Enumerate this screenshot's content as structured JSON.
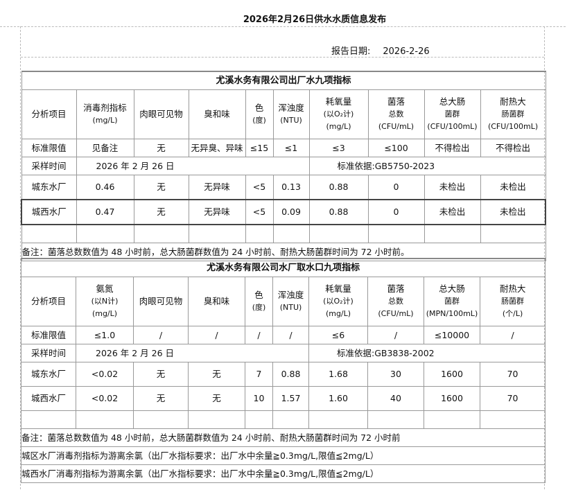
{
  "page_title": "2026年2月26日供水水质信息发布",
  "report_date_label": "报告日期:",
  "report_date": "2026-2-26",
  "table1": {
    "title": "尤溪水务有限公司出厂水九项指标",
    "headers": [
      [
        "分析项目"
      ],
      [
        "消毒剂指标",
        "(mg/L)"
      ],
      [
        "肉眼可见物"
      ],
      [
        "臭和味"
      ],
      [
        "色",
        "(度)"
      ],
      [
        "浑浊度",
        "(NTU)"
      ],
      [
        "耗氧量",
        "(以O₂计)",
        "(mg/L)"
      ],
      [
        "菌落",
        "总数",
        "(CFU/mL)"
      ],
      [
        "总大肠",
        "菌群",
        "(CFU/100mL)"
      ],
      [
        "耐热大",
        "肠菌群",
        "(CFU/100mL)"
      ]
    ],
    "limits": [
      "标准限值",
      "见备注",
      "无",
      "无异臭、异味",
      "≤15",
      "≤1",
      "≤3",
      "≤100",
      "不得检出",
      "不得检出"
    ],
    "sampling_label": "采样时间",
    "sampling_date": "2026 年 2 月 26 日",
    "standard": "标准依据:GB5750-2023",
    "rows": [
      [
        "城东水厂",
        "0.46",
        "无",
        "无异味",
        "<5",
        "0.13",
        "0.88",
        "0",
        "未检出",
        "未检出"
      ],
      [
        "城西水厂",
        "0.47",
        "无",
        "无异味",
        "<5",
        "0.09",
        "0.88",
        "0",
        "未检出",
        "未检出"
      ]
    ],
    "note": "备注：菌落总数数值为 48 小时前，总大肠菌群数值为 24 小时前、耐热大肠菌群时间为 72 小时前。"
  },
  "table2": {
    "title": "尤溪水务有限公司水厂取水口九项指标",
    "headers": [
      [
        "分析项目"
      ],
      [
        "氨氮",
        "(以N计)",
        "(mg/L)"
      ],
      [
        "肉眼可见物"
      ],
      [
        "臭和味"
      ],
      [
        "色",
        "(度)"
      ],
      [
        "浑浊度",
        "(NTU)"
      ],
      [
        "耗氧量",
        "(以O₂计)",
        "(mg/L)"
      ],
      [
        "菌落",
        "总数",
        "(CFU/mL)"
      ],
      [
        "总大肠",
        "菌群",
        "(MPN/100mL)"
      ],
      [
        "耐热大",
        "肠菌群",
        "(个/L)"
      ]
    ],
    "limits": [
      "标准限值",
      "≤1.0",
      "/",
      "/",
      "/",
      "/",
      "≤6",
      "/",
      "≤10000",
      "/"
    ],
    "sampling_label": "采样时间",
    "sampling_date": "2026 年 2 月 26 日",
    "standard": "标准依据:GB3838-2002",
    "rows": [
      [
        "城东水厂",
        "<0.02",
        "无",
        "无",
        "7",
        "0.88",
        "1.68",
        "30",
        "1600",
        "70"
      ],
      [
        "城西水厂",
        "<0.02",
        "无",
        "无",
        "10",
        "1.57",
        "1.60",
        "40",
        "1600",
        "70"
      ]
    ],
    "notes": [
      "备注：菌落总数数值为 48 小时前，总大肠菌群数值为 24 小时前、耐热大肠菌群时间为 72 小时前",
      "城区水厂消毒剂指标为游离余氯（出厂水指标要求：出厂水中余量≧0.3mg/L,限值≦2mg/L）",
      "城西水厂消毒剂指标为游离余氯（出厂水指标要求：出厂水中余量≧0.3mg/L,限值≦2mg/L）"
    ]
  }
}
